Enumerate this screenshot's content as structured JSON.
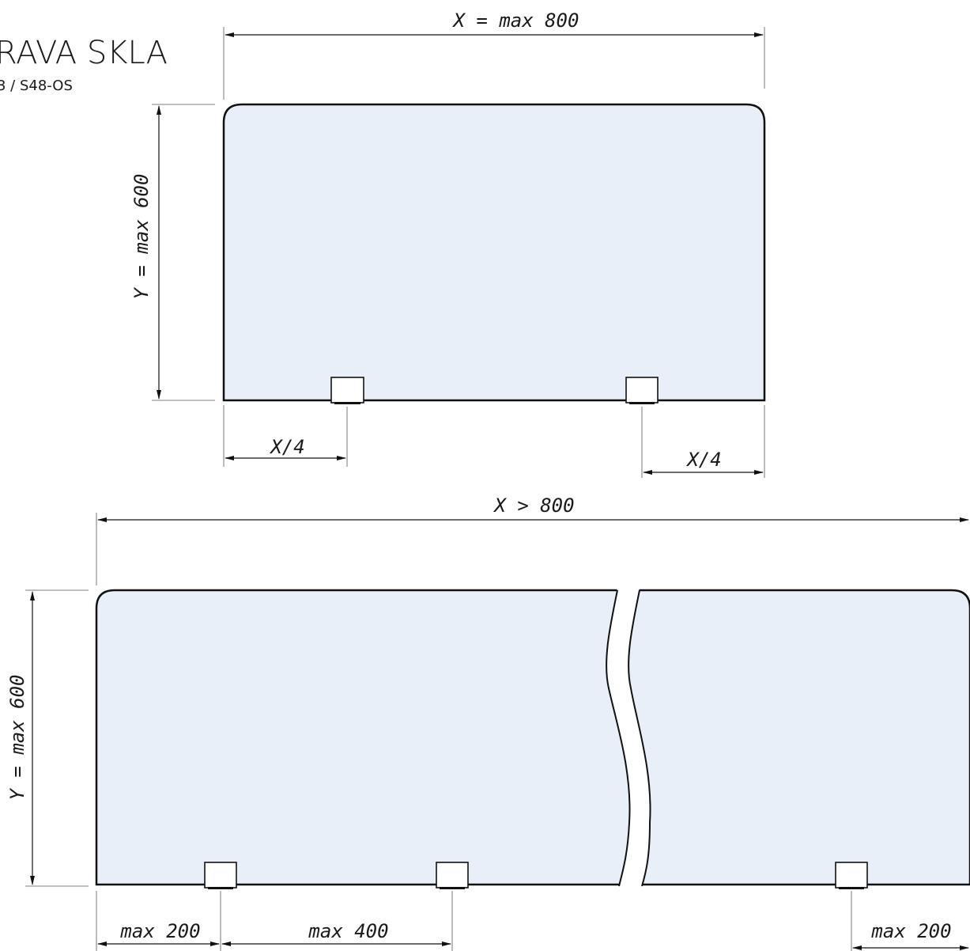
{
  "header": {
    "title": "RAVA SKLA",
    "subtitle": "3 / S48-OS"
  },
  "upper_panel": {
    "width_label": "X = max 800",
    "height_label": "Y = max 600",
    "left_offset_label": "X/4",
    "right_offset_label": "X/4"
  },
  "lower_panel": {
    "width_label": "X > 800",
    "height_label": "Y = max 600",
    "left_edge_label": "max 200",
    "spacing_label": "max 400",
    "right_edge_label": "max 200"
  },
  "colors": {
    "glass_fill": "#e8eff8",
    "outline": "#111111"
  }
}
